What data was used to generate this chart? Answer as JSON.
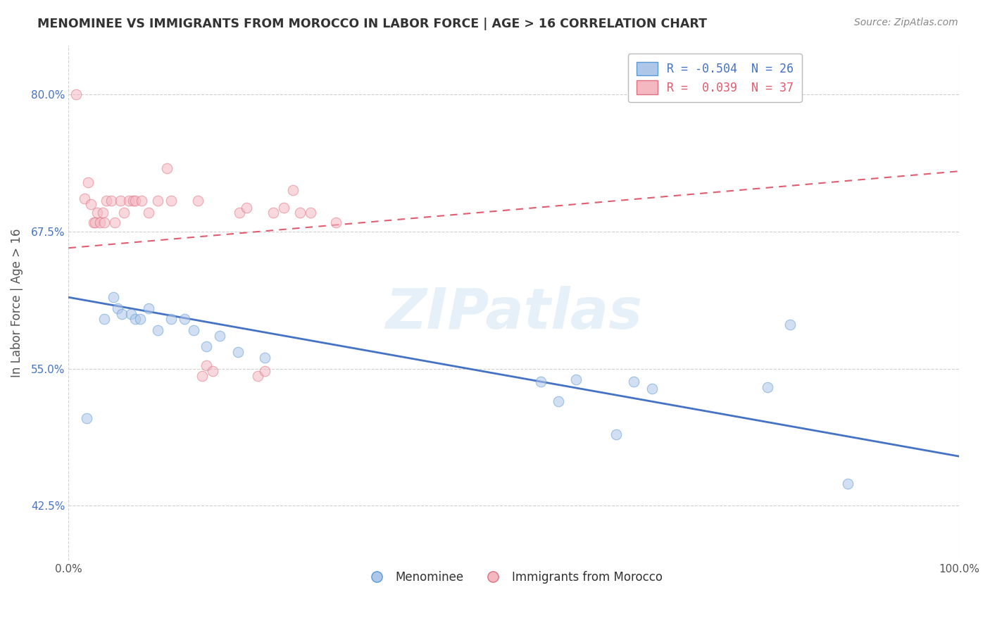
{
  "title": "MENOMINEE VS IMMIGRANTS FROM MOROCCO IN LABOR FORCE | AGE > 16 CORRELATION CHART",
  "source": "Source: ZipAtlas.com",
  "ylabel": "In Labor Force | Age > 16",
  "xlim": [
    0.0,
    1.0
  ],
  "ylim": [
    0.375,
    0.845
  ],
  "x_ticks": [
    0.0,
    1.0
  ],
  "x_tick_labels": [
    "0.0%",
    "100.0%"
  ],
  "y_ticks": [
    0.425,
    0.55,
    0.675,
    0.8
  ],
  "y_tick_labels": [
    "42.5%",
    "55.0%",
    "67.5%",
    "80.0%"
  ],
  "legend_entries": [
    {
      "label": "R = -0.504  N = 26",
      "color": "#aec6e8",
      "edge_color": "#5b9bd5",
      "text_color": "#4472c4"
    },
    {
      "label": "R =  0.039  N = 37",
      "color": "#f4b8c1",
      "edge_color": "#e07080",
      "text_color": "#e05c6e"
    }
  ],
  "blue_scatter_x": [
    0.02,
    0.04,
    0.05,
    0.055,
    0.06,
    0.07,
    0.075,
    0.08,
    0.09,
    0.1,
    0.115,
    0.13,
    0.14,
    0.155,
    0.17,
    0.19,
    0.22,
    0.53,
    0.55,
    0.57,
    0.615,
    0.635,
    0.655,
    0.785,
    0.81,
    0.875
  ],
  "blue_scatter_y": [
    0.505,
    0.595,
    0.615,
    0.605,
    0.6,
    0.6,
    0.595,
    0.595,
    0.605,
    0.585,
    0.595,
    0.595,
    0.585,
    0.57,
    0.58,
    0.565,
    0.56,
    0.538,
    0.52,
    0.54,
    0.49,
    0.538,
    0.532,
    0.533,
    0.59,
    0.445
  ],
  "pink_scatter_x": [
    0.008,
    0.018,
    0.022,
    0.025,
    0.028,
    0.03,
    0.032,
    0.035,
    0.038,
    0.04,
    0.042,
    0.048,
    0.052,
    0.058,
    0.062,
    0.068,
    0.072,
    0.075,
    0.082,
    0.09,
    0.1,
    0.11,
    0.115,
    0.145,
    0.15,
    0.155,
    0.162,
    0.192,
    0.2,
    0.212,
    0.22,
    0.23,
    0.242,
    0.252,
    0.26,
    0.272,
    0.3
  ],
  "pink_scatter_y": [
    0.8,
    0.705,
    0.72,
    0.7,
    0.683,
    0.683,
    0.692,
    0.683,
    0.692,
    0.683,
    0.703,
    0.703,
    0.683,
    0.703,
    0.692,
    0.703,
    0.703,
    0.703,
    0.703,
    0.692,
    0.703,
    0.733,
    0.703,
    0.703,
    0.543,
    0.553,
    0.548,
    0.692,
    0.697,
    0.543,
    0.548,
    0.692,
    0.697,
    0.713,
    0.692,
    0.692,
    0.683
  ],
  "blue_line_x": [
    0.0,
    1.0
  ],
  "blue_line_y": [
    0.615,
    0.47
  ],
  "pink_line_x": [
    0.0,
    1.0
  ],
  "pink_line_y": [
    0.66,
    0.73
  ],
  "watermark": "ZIPatlas",
  "background_color": "#ffffff",
  "grid_color": "#d0d0d0",
  "dot_alpha": 0.55,
  "dot_size": 110,
  "blue_color": "#4472c4",
  "blue_fill": "#aec6e8",
  "blue_edge": "#5b9bd5",
  "pink_color": "#e05c6e",
  "pink_fill": "#f4b8c1",
  "pink_edge": "#e07080"
}
